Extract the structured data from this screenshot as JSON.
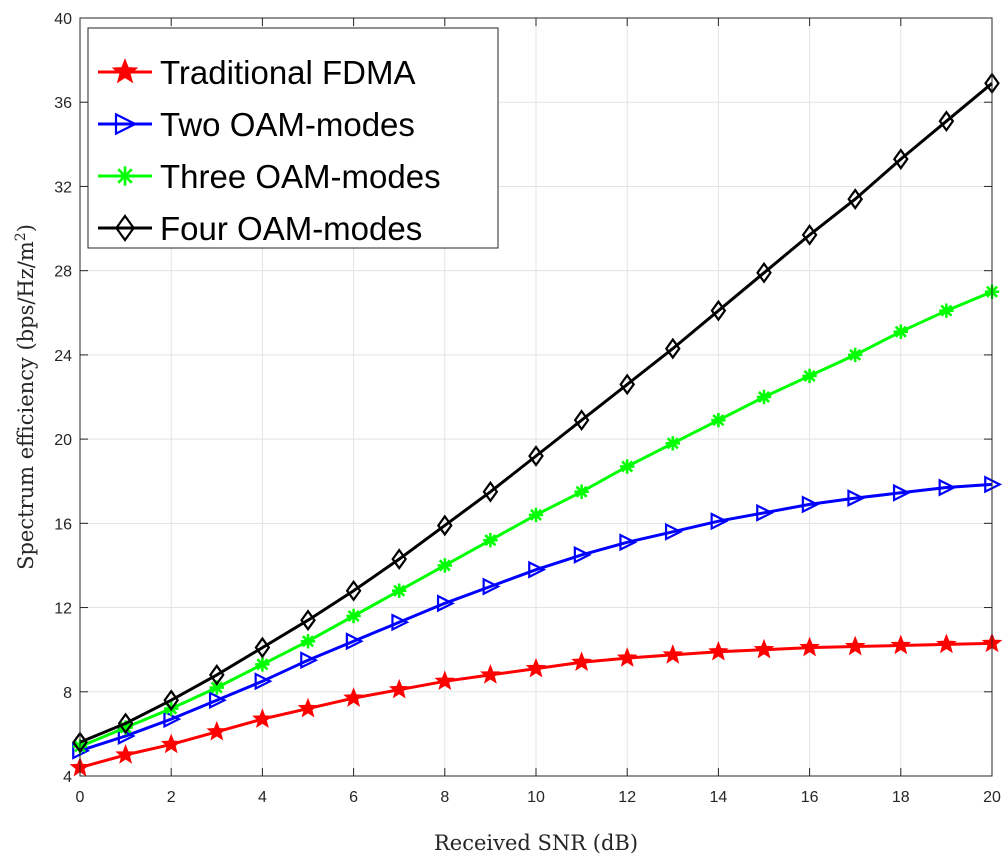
{
  "chart_data": {
    "type": "line",
    "xlabel": "Received SNR (dB)",
    "ylabel": "Spectrum efficiency (bps/Hz/m",
    "ylabel_sup": "2",
    "ylabel_close": ")",
    "xlim": [
      0,
      20
    ],
    "ylim": [
      4,
      40
    ],
    "xticks": [
      0,
      2,
      4,
      6,
      8,
      10,
      12,
      14,
      16,
      18,
      20
    ],
    "yticks": [
      4,
      8,
      12,
      16,
      20,
      24,
      28,
      32,
      36,
      40
    ],
    "grid": true,
    "legend_position": "top-left",
    "x": [
      0,
      1,
      2,
      3,
      4,
      5,
      6,
      7,
      8,
      9,
      10,
      11,
      12,
      13,
      14,
      15,
      16,
      17,
      18,
      19,
      20
    ],
    "series": [
      {
        "name": "Traditional FDMA",
        "color": "#ff0000",
        "marker": "star",
        "values": [
          4.4,
          5.0,
          5.5,
          6.1,
          6.7,
          7.2,
          7.7,
          8.1,
          8.5,
          8.8,
          9.1,
          9.4,
          9.6,
          9.75,
          9.9,
          10.0,
          10.1,
          10.15,
          10.2,
          10.25,
          10.3
        ]
      },
      {
        "name": "Two OAM-modes",
        "color": "#0000ff",
        "marker": "triangle-right",
        "values": [
          5.2,
          5.9,
          6.7,
          7.6,
          8.5,
          9.5,
          10.4,
          11.3,
          12.2,
          13.0,
          13.8,
          14.5,
          15.1,
          15.6,
          16.1,
          16.5,
          16.9,
          17.2,
          17.45,
          17.7,
          17.85
        ]
      },
      {
        "name": "Three OAM-modes",
        "color": "#00ff00",
        "marker": "asterisk",
        "values": [
          5.4,
          6.3,
          7.2,
          8.2,
          9.3,
          10.4,
          11.6,
          12.8,
          14.0,
          15.2,
          16.4,
          17.5,
          18.7,
          19.8,
          20.9,
          22.0,
          23.0,
          24.0,
          25.1,
          26.1,
          27.0
        ]
      },
      {
        "name": "Four OAM-modes",
        "color": "#000000",
        "marker": "diamond",
        "values": [
          5.6,
          6.5,
          7.6,
          8.8,
          10.1,
          11.4,
          12.8,
          14.3,
          15.9,
          17.5,
          19.2,
          20.9,
          22.6,
          24.3,
          26.1,
          27.9,
          29.7,
          31.4,
          33.3,
          35.1,
          36.9
        ]
      }
    ]
  }
}
